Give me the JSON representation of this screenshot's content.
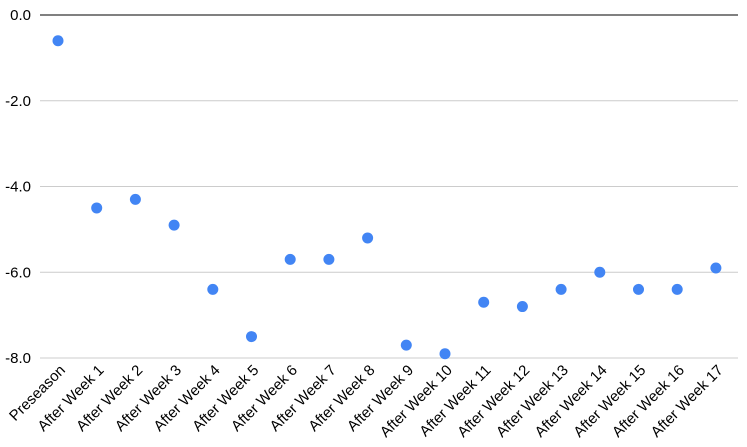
{
  "chart_data": {
    "type": "scatter",
    "title": "",
    "xlabel": "",
    "ylabel": "",
    "categories": [
      "Preseason",
      "After Week 1",
      "After Week 2",
      "After Week 3",
      "After Week 4",
      "After Week 5",
      "After Week 6",
      "After Week 7",
      "After Week 8",
      "After Week 9",
      "After Week 10",
      "After Week 11",
      "After Week 12",
      "After Week 13",
      "After Week 14",
      "After Week 15",
      "After Week 16",
      "After Week 17"
    ],
    "values": [
      -0.6,
      -4.5,
      -4.3,
      -4.9,
      -6.4,
      -7.5,
      -5.7,
      -5.7,
      -5.2,
      -7.7,
      -7.9,
      -6.7,
      -6.8,
      -6.4,
      -6.0,
      -6.4,
      -6.4,
      -5.9
    ],
    "ylim": [
      -8.0,
      0.0
    ],
    "yticks": [
      "0.0",
      "-2.0",
      "-4.0",
      "-6.0",
      "-8.0"
    ],
    "grid": true,
    "legend": "none",
    "colors": {
      "point": "#4285f4",
      "grid": "#cccccc",
      "axis": "#000000"
    }
  }
}
